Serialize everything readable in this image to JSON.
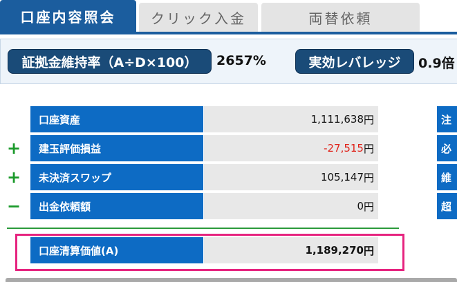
{
  "tabs": [
    {
      "label": "口座内容照会",
      "active": true
    },
    {
      "label": "クリック入金",
      "active": false
    },
    {
      "label": "両替依頼",
      "active": false
    }
  ],
  "ratios": {
    "margin_ratio_label": "証拠金維持率（A÷D×100）",
    "margin_ratio_value": "2657%",
    "leverage_label": "実効レバレッジ",
    "leverage_value": "0.9倍"
  },
  "rows": [
    {
      "sign": "",
      "label": "口座資産",
      "amount": "1,111,638",
      "unit": "円",
      "side": "注"
    },
    {
      "sign": "+",
      "label": "建玉評価損益",
      "amount": "-27,515",
      "unit": "円",
      "side": "必"
    },
    {
      "sign": "+",
      "label": "未決済スワップ",
      "amount": "105,147",
      "unit": "円",
      "side": "維"
    },
    {
      "sign": "−",
      "label": "出金依頼額",
      "amount": "0",
      "unit": "円",
      "side": "超"
    }
  ],
  "total": {
    "label": "口座清算価値(A)",
    "amount": "1,189,270",
    "unit": "円"
  },
  "colors": {
    "tab_active": "#1b5d9e",
    "label_bg": "#0d6bc4",
    "value_bg": "#e8e8e8",
    "negative": "#e0241c",
    "sign_green": "#1a9a2a",
    "highlight": "#e6237f"
  }
}
